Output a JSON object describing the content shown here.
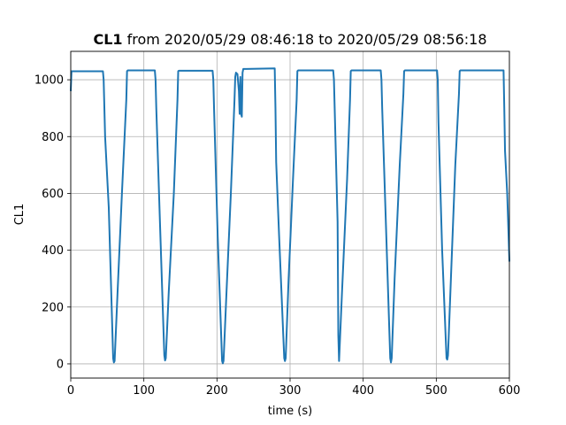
{
  "chart_data": {
    "type": "line",
    "title_bold": "CL1",
    "title_rest": " from 2020/05/29 08:46:18 to 2020/05/29 08:56:18",
    "xlabel": "time (s)",
    "ylabel": "CL1",
    "xlim": [
      0,
      600
    ],
    "ylim": [
      -50,
      1100
    ],
    "xticks": [
      0,
      100,
      200,
      300,
      400,
      500,
      600
    ],
    "yticks": [
      0,
      200,
      400,
      600,
      800,
      1000
    ],
    "grid": true,
    "line_color": "#1f77b4",
    "series": [
      {
        "x": [
          0,
          1,
          2,
          44,
          45,
          46,
          47,
          52,
          58,
          59,
          60,
          64,
          70,
          76,
          77,
          78,
          115,
          116,
          117,
          122,
          128,
          129,
          130,
          134,
          141,
          146,
          147,
          148,
          194,
          195,
          196,
          201,
          207,
          208,
          209,
          213,
          219,
          224,
          225,
          226,
          228,
          230,
          231,
          232,
          233,
          234,
          235,
          236,
          237,
          238,
          239,
          240,
          279,
          280,
          281,
          285,
          292,
          293,
          294,
          298,
          304,
          309,
          310,
          311,
          359,
          360,
          361,
          365,
          366,
          367,
          371,
          378,
          382,
          383,
          384,
          424,
          425,
          426,
          431,
          437,
          438,
          439,
          443,
          450,
          455,
          456,
          457,
          501,
          502,
          503,
          508,
          514,
          515,
          516,
          520,
          526,
          531,
          532,
          533,
          592,
          593,
          594,
          597,
          600
        ],
        "y": [
          960,
          1030,
          1030,
          1030,
          1000,
          900,
          800,
          550,
          20,
          5,
          10,
          250,
          600,
          930,
          1030,
          1033,
          1033,
          1000,
          900,
          500,
          30,
          12,
          20,
          250,
          600,
          930,
          1030,
          1032,
          1032,
          1000,
          900,
          450,
          10,
          2,
          10,
          250,
          600,
          930,
          1010,
          1025,
          1020,
          960,
          880,
          1010,
          880,
          870,
          1025,
          1038,
          1038,
          1038,
          1038,
          1038,
          1040,
          900,
          710,
          450,
          20,
          10,
          20,
          300,
          650,
          930,
          1030,
          1033,
          1033,
          1000,
          900,
          500,
          100,
          10,
          250,
          650,
          930,
          1030,
          1033,
          1033,
          1000,
          900,
          500,
          20,
          5,
          20,
          300,
          700,
          950,
          1030,
          1033,
          1033,
          1000,
          850,
          400,
          20,
          15,
          30,
          300,
          700,
          950,
          1030,
          1033,
          1033,
          900,
          750,
          600,
          360
        ]
      }
    ]
  }
}
